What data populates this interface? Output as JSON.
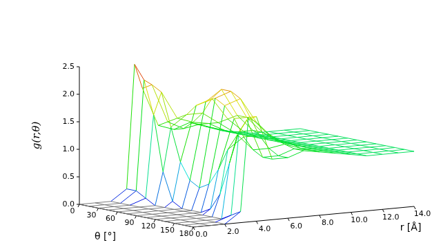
{
  "chart_data": {
    "type": "surface",
    "x_label": "r [Å]",
    "y_label": "θ [°]",
    "z_label": "g(r,θ)",
    "x": [
      0,
      1,
      2,
      3,
      3.5,
      4,
      5,
      6,
      7,
      8,
      9,
      10,
      11,
      12,
      13,
      14
    ],
    "y": [
      0,
      15,
      30,
      45,
      60,
      75,
      90,
      105,
      120,
      135,
      150,
      165,
      180
    ],
    "z": [
      [
        0,
        0,
        0,
        0.2,
        2.45,
        2.0,
        1.3,
        1.2,
        1.3,
        1.2,
        1.1,
        1.05,
        1.0,
        1.0,
        1.0,
        1.0
      ],
      [
        0,
        0,
        0,
        0.2,
        2.2,
        2.1,
        1.4,
        1.25,
        1.3,
        1.2,
        1.1,
        1.05,
        1.0,
        1.0,
        1.0,
        1.0
      ],
      [
        0,
        0,
        0,
        0.1,
        1.6,
        2.0,
        1.5,
        1.4,
        1.35,
        1.2,
        1.1,
        1.05,
        1.0,
        1.0,
        1.0,
        1.0
      ],
      [
        0,
        0,
        0,
        0,
        0.6,
        1.4,
        1.6,
        1.6,
        1.4,
        1.2,
        1.1,
        1.05,
        1.0,
        1.0,
        1.0,
        1.0
      ],
      [
        0,
        0,
        0,
        0,
        0.1,
        0.8,
        1.8,
        1.9,
        1.5,
        1.25,
        1.1,
        1.05,
        1.0,
        1.0,
        1.0,
        1.0
      ],
      [
        0,
        0,
        0,
        0,
        0,
        0.5,
        1.9,
        2.1,
        1.6,
        1.3,
        1.1,
        1.05,
        1.0,
        1.0,
        1.0,
        1.0
      ],
      [
        0,
        0,
        0,
        0,
        0,
        0.4,
        2.0,
        2.1,
        1.6,
        1.3,
        1.1,
        1.05,
        1.0,
        1.0,
        1.0,
        1.0
      ],
      [
        0,
        0,
        0,
        0,
        0,
        0.5,
        1.9,
        2.0,
        1.55,
        1.25,
        1.1,
        1.05,
        1.0,
        1.0,
        1.0,
        1.0
      ],
      [
        0,
        0,
        0,
        0,
        0.1,
        0.8,
        1.7,
        1.7,
        1.4,
        1.2,
        1.1,
        1.05,
        1.0,
        1.0,
        1.0,
        1.0
      ],
      [
        0,
        0,
        0,
        0,
        0.4,
        1.2,
        1.4,
        1.4,
        1.3,
        1.2,
        1.1,
        1.05,
        1.0,
        1.0,
        1.0,
        1.0
      ],
      [
        0,
        0,
        0,
        0,
        1.0,
        1.5,
        1.2,
        1.2,
        1.25,
        1.15,
        1.1,
        1.05,
        1.0,
        1.0,
        1.0,
        1.0
      ],
      [
        0,
        0,
        0,
        0.1,
        1.6,
        1.8,
        1.1,
        1.1,
        1.2,
        1.15,
        1.1,
        1.05,
        1.0,
        1.0,
        1.0,
        1.0
      ],
      [
        0,
        0,
        0,
        0.2,
        1.9,
        1.9,
        1.1,
        1.1,
        1.2,
        1.15,
        1.1,
        1.05,
        1.0,
        1.0,
        1.0,
        1.0
      ]
    ],
    "xlim": [
      0,
      14
    ],
    "xticks": [
      {
        "value": 0,
        "label": "0.0"
      },
      {
        "value": 2,
        "label": "2.0"
      },
      {
        "value": 4,
        "label": "4.0"
      },
      {
        "value": 6,
        "label": "6.0"
      },
      {
        "value": 8,
        "label": "8.0"
      },
      {
        "value": 10,
        "label": "10.0"
      },
      {
        "value": 12,
        "label": "12.0"
      },
      {
        "value": 14,
        "label": "14.0"
      }
    ],
    "ylim": [
      0,
      180
    ],
    "yticks": [
      0,
      30,
      60,
      90,
      120,
      150,
      180
    ],
    "zlim": [
      0,
      2.5
    ],
    "zticks": [
      {
        "value": 0,
        "label": "0.0"
      },
      {
        "value": 0.5,
        "label": "0.5"
      },
      {
        "value": 1,
        "label": "1.0"
      },
      {
        "value": 1.5,
        "label": "1.5"
      },
      {
        "value": 2,
        "label": "2.0"
      },
      {
        "value": 2.5,
        "label": "2.5"
      }
    ]
  }
}
